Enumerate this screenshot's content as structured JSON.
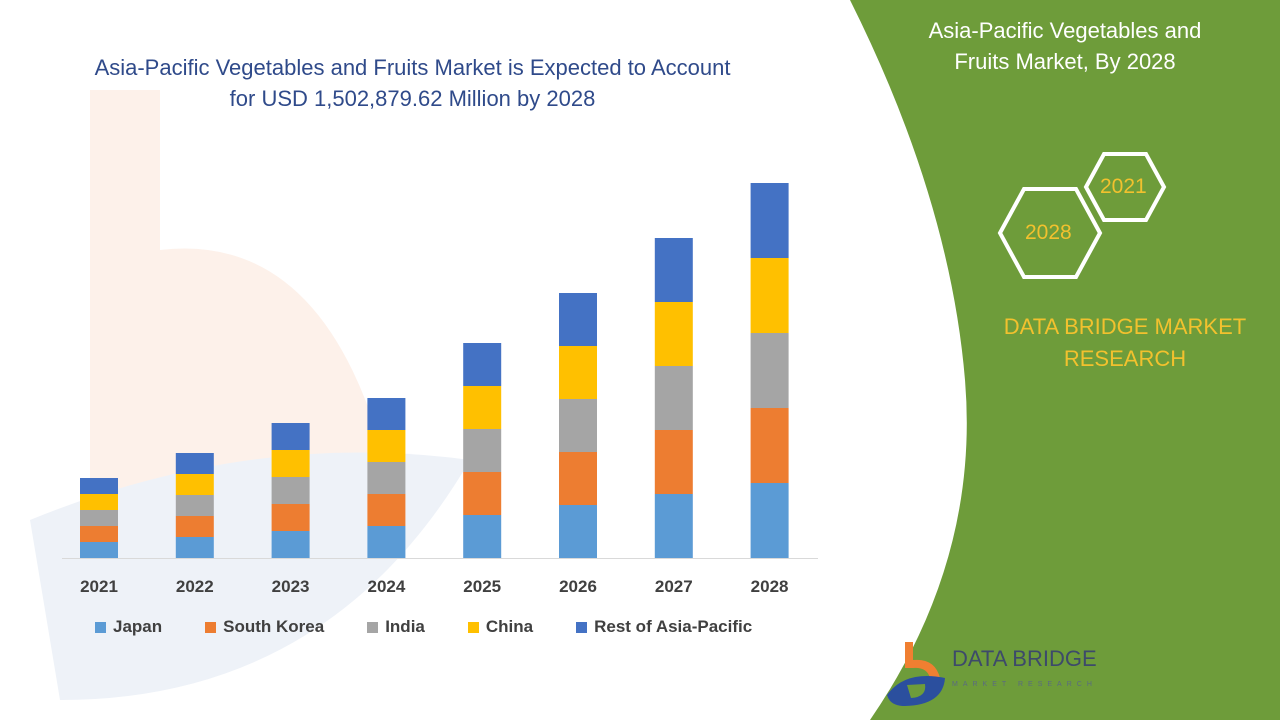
{
  "title": "Asia-Pacific Vegetables and Fruits Market is Expected to Account for USD 1,502,879.62 Million by 2028",
  "panel": {
    "title": "Asia-Pacific Vegetables and Fruits Market, By 2028",
    "hex_years": [
      "2021",
      "2028"
    ],
    "brand": "DATA BRIDGE MARKET RESEARCH",
    "logo_text": "DATA BRIDGE",
    "logo_sub": "MARKET RESEARCH",
    "background": "#6e9c3a",
    "accent": "#f2c12e"
  },
  "chart_data": {
    "type": "bar",
    "stacked": true,
    "title": "Asia-Pacific Vegetables and Fruits Market is Expected to Account for USD 1,502,879.62 Million by 2028",
    "categories": [
      "2021",
      "2022",
      "2023",
      "2024",
      "2025",
      "2026",
      "2027",
      "2028"
    ],
    "series": [
      {
        "name": "Japan",
        "color": "#5b9bd5",
        "values": [
          16,
          21,
          27,
          32,
          43,
          53,
          64,
          75
        ]
      },
      {
        "name": "South Korea",
        "color": "#ed7d31",
        "values": [
          16,
          21,
          27,
          32,
          43,
          53,
          64,
          75
        ]
      },
      {
        "name": "India",
        "color": "#a5a5a5",
        "values": [
          16,
          21,
          27,
          32,
          43,
          53,
          64,
          75
        ]
      },
      {
        "name": "China",
        "color": "#ffc000",
        "values": [
          16,
          21,
          27,
          32,
          43,
          53,
          64,
          75
        ]
      },
      {
        "name": "Rest of Asia-Pacific",
        "color": "#4472c4",
        "values": [
          16,
          21,
          27,
          32,
          43,
          53,
          64,
          75
        ]
      }
    ],
    "y_axis_visible": false,
    "grid": false,
    "legend_position": "bottom",
    "xlabel": "",
    "ylabel": ""
  }
}
